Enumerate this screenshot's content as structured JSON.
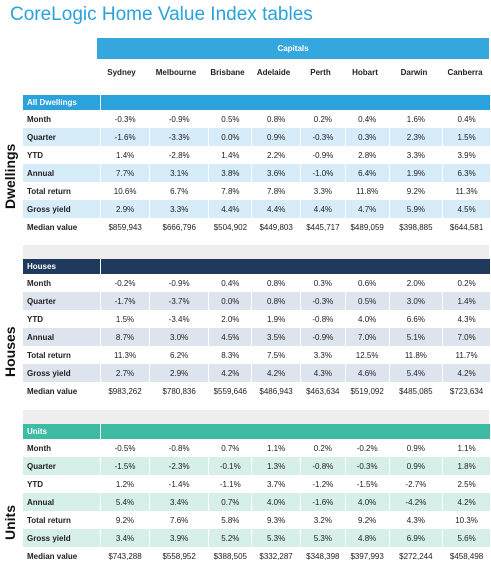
{
  "title": "CoreLogic Home Value Index tables",
  "capitals_label": "Capitals",
  "columns": [
    "Sydney",
    "Melbourne",
    "Brisbane",
    "Adelaide",
    "Perth",
    "Hobart",
    "Darwin",
    "Canberra"
  ],
  "colors": {
    "dwellings_header": "#2aa2dc",
    "houses_header": "#1f3a5c",
    "units_header": "#3ebba3",
    "dwellings_band": "#d6ecf9",
    "houses_band": "#dde4ee",
    "units_band": "#d6efe9"
  },
  "sections": [
    {
      "side_label": "Dwellings",
      "header": "All Dwellings",
      "rows": [
        {
          "label": "Month",
          "values": [
            "-0.3%",
            "-0.9%",
            "0.5%",
            "0.8%",
            "0.2%",
            "0.4%",
            "1.6%",
            "0.4%"
          ]
        },
        {
          "label": "Quarter",
          "values": [
            "-1.6%",
            "-3.3%",
            "0.0%",
            "0.9%",
            "-0.3%",
            "0.3%",
            "2.3%",
            "1.5%"
          ]
        },
        {
          "label": "YTD",
          "values": [
            "1.4%",
            "-2.8%",
            "1.4%",
            "2.2%",
            "-0.9%",
            "2.8%",
            "3.3%",
            "3.9%"
          ]
        },
        {
          "label": "Annual",
          "values": [
            "7.7%",
            "3.1%",
            "3.8%",
            "3.6%",
            "-1.0%",
            "6.4%",
            "1.9%",
            "6.3%"
          ]
        },
        {
          "label": "Total return",
          "values": [
            "10.6%",
            "6.7%",
            "7.8%",
            "7.8%",
            "3.3%",
            "11.8%",
            "9.2%",
            "11.3%"
          ]
        },
        {
          "label": "Gross yield",
          "values": [
            "2.9%",
            "3.3%",
            "4.4%",
            "4.4%",
            "4.4%",
            "4.7%",
            "5.9%",
            "4.5%"
          ]
        },
        {
          "label": "Median value",
          "values": [
            "$859,943",
            "$666,796",
            "$504,902",
            "$449,803",
            "$445,717",
            "$489,059",
            "$398,885",
            "$644,581"
          ]
        }
      ]
    },
    {
      "side_label": "Houses",
      "header": "Houses",
      "rows": [
        {
          "label": "Month",
          "values": [
            "-0.2%",
            "-0.9%",
            "0.4%",
            "0.8%",
            "0.3%",
            "0.6%",
            "2.0%",
            "0.2%"
          ]
        },
        {
          "label": "Quarter",
          "values": [
            "-1.7%",
            "-3.7%",
            "0.0%",
            "0.8%",
            "-0.3%",
            "0.5%",
            "3.0%",
            "1.4%"
          ]
        },
        {
          "label": "YTD",
          "values": [
            "1.5%",
            "-3.4%",
            "2.0%",
            "1.9%",
            "-0.8%",
            "4.0%",
            "6.6%",
            "4.3%"
          ]
        },
        {
          "label": "Annual",
          "values": [
            "8.7%",
            "3.0%",
            "4.5%",
            "3.5%",
            "-0.9%",
            "7.0%",
            "5.1%",
            "7.0%"
          ]
        },
        {
          "label": "Total return",
          "values": [
            "11.3%",
            "6.2%",
            "8.3%",
            "7.5%",
            "3.3%",
            "12.5%",
            "11.8%",
            "11.7%"
          ]
        },
        {
          "label": "Gross yield",
          "values": [
            "2.7%",
            "2.9%",
            "4.2%",
            "4.2%",
            "4.3%",
            "4.6%",
            "5.4%",
            "4.2%"
          ]
        },
        {
          "label": "Median value",
          "values": [
            "$983,262",
            "$780,836",
            "$559,646",
            "$486,943",
            "$463,634",
            "$519,092",
            "$485,085",
            "$723,634"
          ]
        }
      ]
    },
    {
      "side_label": "Units",
      "header": "Units",
      "rows": [
        {
          "label": "Month",
          "values": [
            "-0.5%",
            "-0.8%",
            "0.7%",
            "1.1%",
            "0.2%",
            "-0.2%",
            "0.9%",
            "1.1%"
          ]
        },
        {
          "label": "Quarter",
          "values": [
            "-1.5%",
            "-2.3%",
            "-0.1%",
            "1.3%",
            "-0.8%",
            "-0.3%",
            "0.9%",
            "1.8%"
          ]
        },
        {
          "label": "YTD",
          "values": [
            "1.2%",
            "-1.4%",
            "-1.1%",
            "3.7%",
            "-1.2%",
            "-1.5%",
            "-2.7%",
            "2.5%"
          ]
        },
        {
          "label": "Annual",
          "values": [
            "5.4%",
            "3.4%",
            "0.7%",
            "4.0%",
            "-1.6%",
            "4.0%",
            "-4.2%",
            "4.2%"
          ]
        },
        {
          "label": "Total return",
          "values": [
            "9.2%",
            "7.6%",
            "5.8%",
            "9.3%",
            "3.2%",
            "9.2%",
            "4.3%",
            "10.3%"
          ]
        },
        {
          "label": "Gross yield",
          "values": [
            "3.4%",
            "3.9%",
            "5.2%",
            "5.3%",
            "5.3%",
            "4.8%",
            "6.9%",
            "5.6%"
          ]
        },
        {
          "label": "Median value",
          "values": [
            "$743,288",
            "$558,952",
            "$388,505",
            "$332,287",
            "$348,398",
            "$397,993",
            "$272,244",
            "$458,498"
          ]
        }
      ]
    }
  ]
}
